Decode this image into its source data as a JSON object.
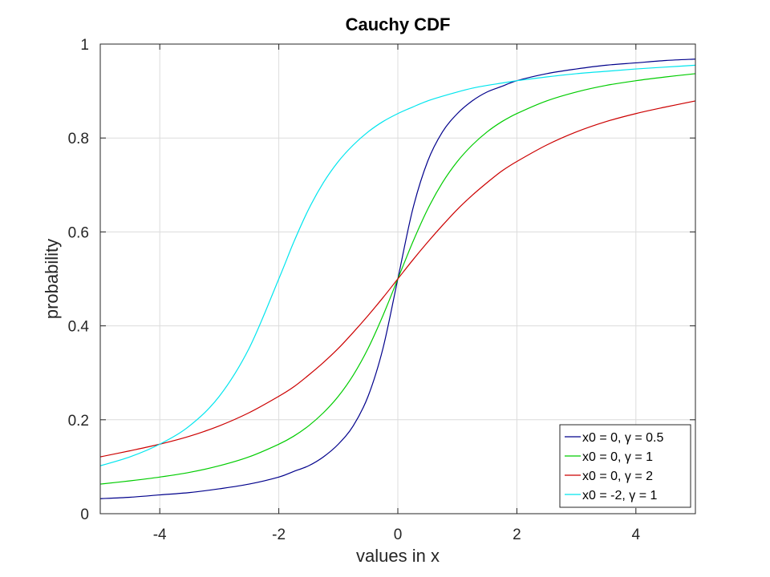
{
  "chart_data": {
    "type": "line",
    "title": "Cauchy CDF",
    "xlabel": "values in x",
    "ylabel": "probability",
    "xlim": [
      -5,
      5
    ],
    "ylim": [
      0,
      1
    ],
    "grid": true,
    "legend_position": "bottom-right",
    "x_ticks": [
      {
        "value": -4,
        "label": "-4"
      },
      {
        "value": -2,
        "label": "-2"
      },
      {
        "value": 0,
        "label": "0"
      },
      {
        "value": 2,
        "label": "2"
      },
      {
        "value": 4,
        "label": "4"
      }
    ],
    "y_ticks": [
      {
        "value": 0,
        "label": "0"
      },
      {
        "value": 0.2,
        "label": "0.2"
      },
      {
        "value": 0.4,
        "label": "0.4"
      },
      {
        "value": 0.6,
        "label": "0.6"
      },
      {
        "value": 0.8,
        "label": "0.8"
      },
      {
        "value": 1,
        "label": "1"
      }
    ],
    "x": [
      -5,
      -4.5,
      -4,
      -3.5,
      -3,
      -2.5,
      -2,
      -1.75,
      -1.5,
      -1.25,
      -1,
      -0.75,
      -0.5,
      -0.25,
      0,
      0.25,
      0.5,
      0.75,
      1,
      1.25,
      1.5,
      1.75,
      2,
      2.5,
      3,
      3.5,
      4,
      4.5,
      5
    ],
    "series": [
      {
        "name": "x0 = 0, γ = 0.5",
        "color": "#00008b",
        "values": [
          0.032,
          0.035,
          0.04,
          0.045,
          0.053,
          0.063,
          0.078,
          0.09,
          0.102,
          0.121,
          0.148,
          0.187,
          0.25,
          0.352,
          0.5,
          0.648,
          0.75,
          0.813,
          0.852,
          0.879,
          0.898,
          0.91,
          0.922,
          0.937,
          0.947,
          0.955,
          0.96,
          0.965,
          0.968
        ]
      },
      {
        "name": "x0 = 0, γ = 1",
        "color": "#00cc00",
        "values": [
          0.063,
          0.07,
          0.078,
          0.088,
          0.102,
          0.121,
          0.148,
          0.165,
          0.187,
          0.215,
          0.25,
          0.295,
          0.352,
          0.422,
          0.5,
          0.578,
          0.648,
          0.705,
          0.75,
          0.785,
          0.813,
          0.835,
          0.852,
          0.879,
          0.898,
          0.912,
          0.922,
          0.93,
          0.937
        ]
      },
      {
        "name": "x0 = 0, γ = 2",
        "color": "#cc0000",
        "values": [
          0.121,
          0.134,
          0.148,
          0.165,
          0.187,
          0.215,
          0.25,
          0.27,
          0.295,
          0.322,
          0.352,
          0.386,
          0.422,
          0.46,
          0.5,
          0.54,
          0.578,
          0.614,
          0.648,
          0.678,
          0.705,
          0.73,
          0.75,
          0.785,
          0.813,
          0.835,
          0.852,
          0.866,
          0.879
        ]
      },
      {
        "name": "x0 = -2, γ = 1",
        "color": "#00e5ee",
        "values": [
          0.102,
          0.121,
          0.148,
          0.187,
          0.25,
          0.352,
          0.5,
          0.578,
          0.648,
          0.705,
          0.75,
          0.785,
          0.813,
          0.835,
          0.852,
          0.866,
          0.879,
          0.889,
          0.898,
          0.906,
          0.912,
          0.917,
          0.922,
          0.93,
          0.937,
          0.942,
          0.947,
          0.951,
          0.955
        ]
      }
    ]
  }
}
